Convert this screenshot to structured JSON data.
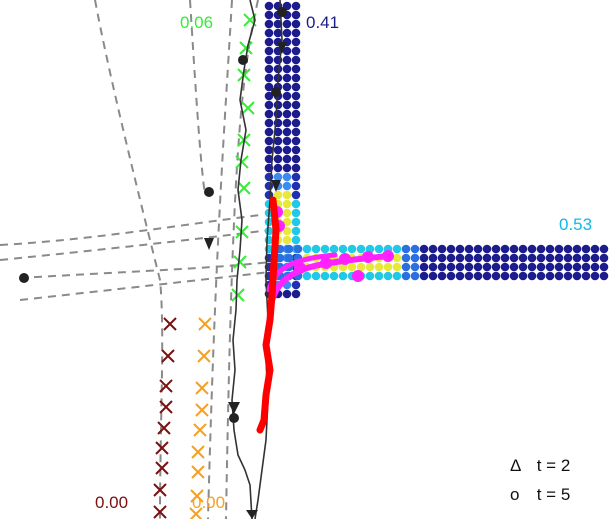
{
  "labels": {
    "green": "0.06",
    "navy": "0.41",
    "cyan": "0.53",
    "darkred": "0.00",
    "orange": "0.00"
  },
  "legend": [
    {
      "symbol": "Δ",
      "text": "t = 2",
      "icon": "triangle-icon"
    },
    {
      "symbol": "o",
      "text": "t = 5",
      "icon": "circle-icon"
    }
  ],
  "colors": {
    "green": "#33ee33",
    "navy": "#1c1c8c",
    "cyan": "#10b8e8",
    "darkred": "#7a1010",
    "orange": "#f5a020",
    "red": "#ff0000",
    "magenta": "#ff22ff",
    "gray": "#888888"
  }
}
